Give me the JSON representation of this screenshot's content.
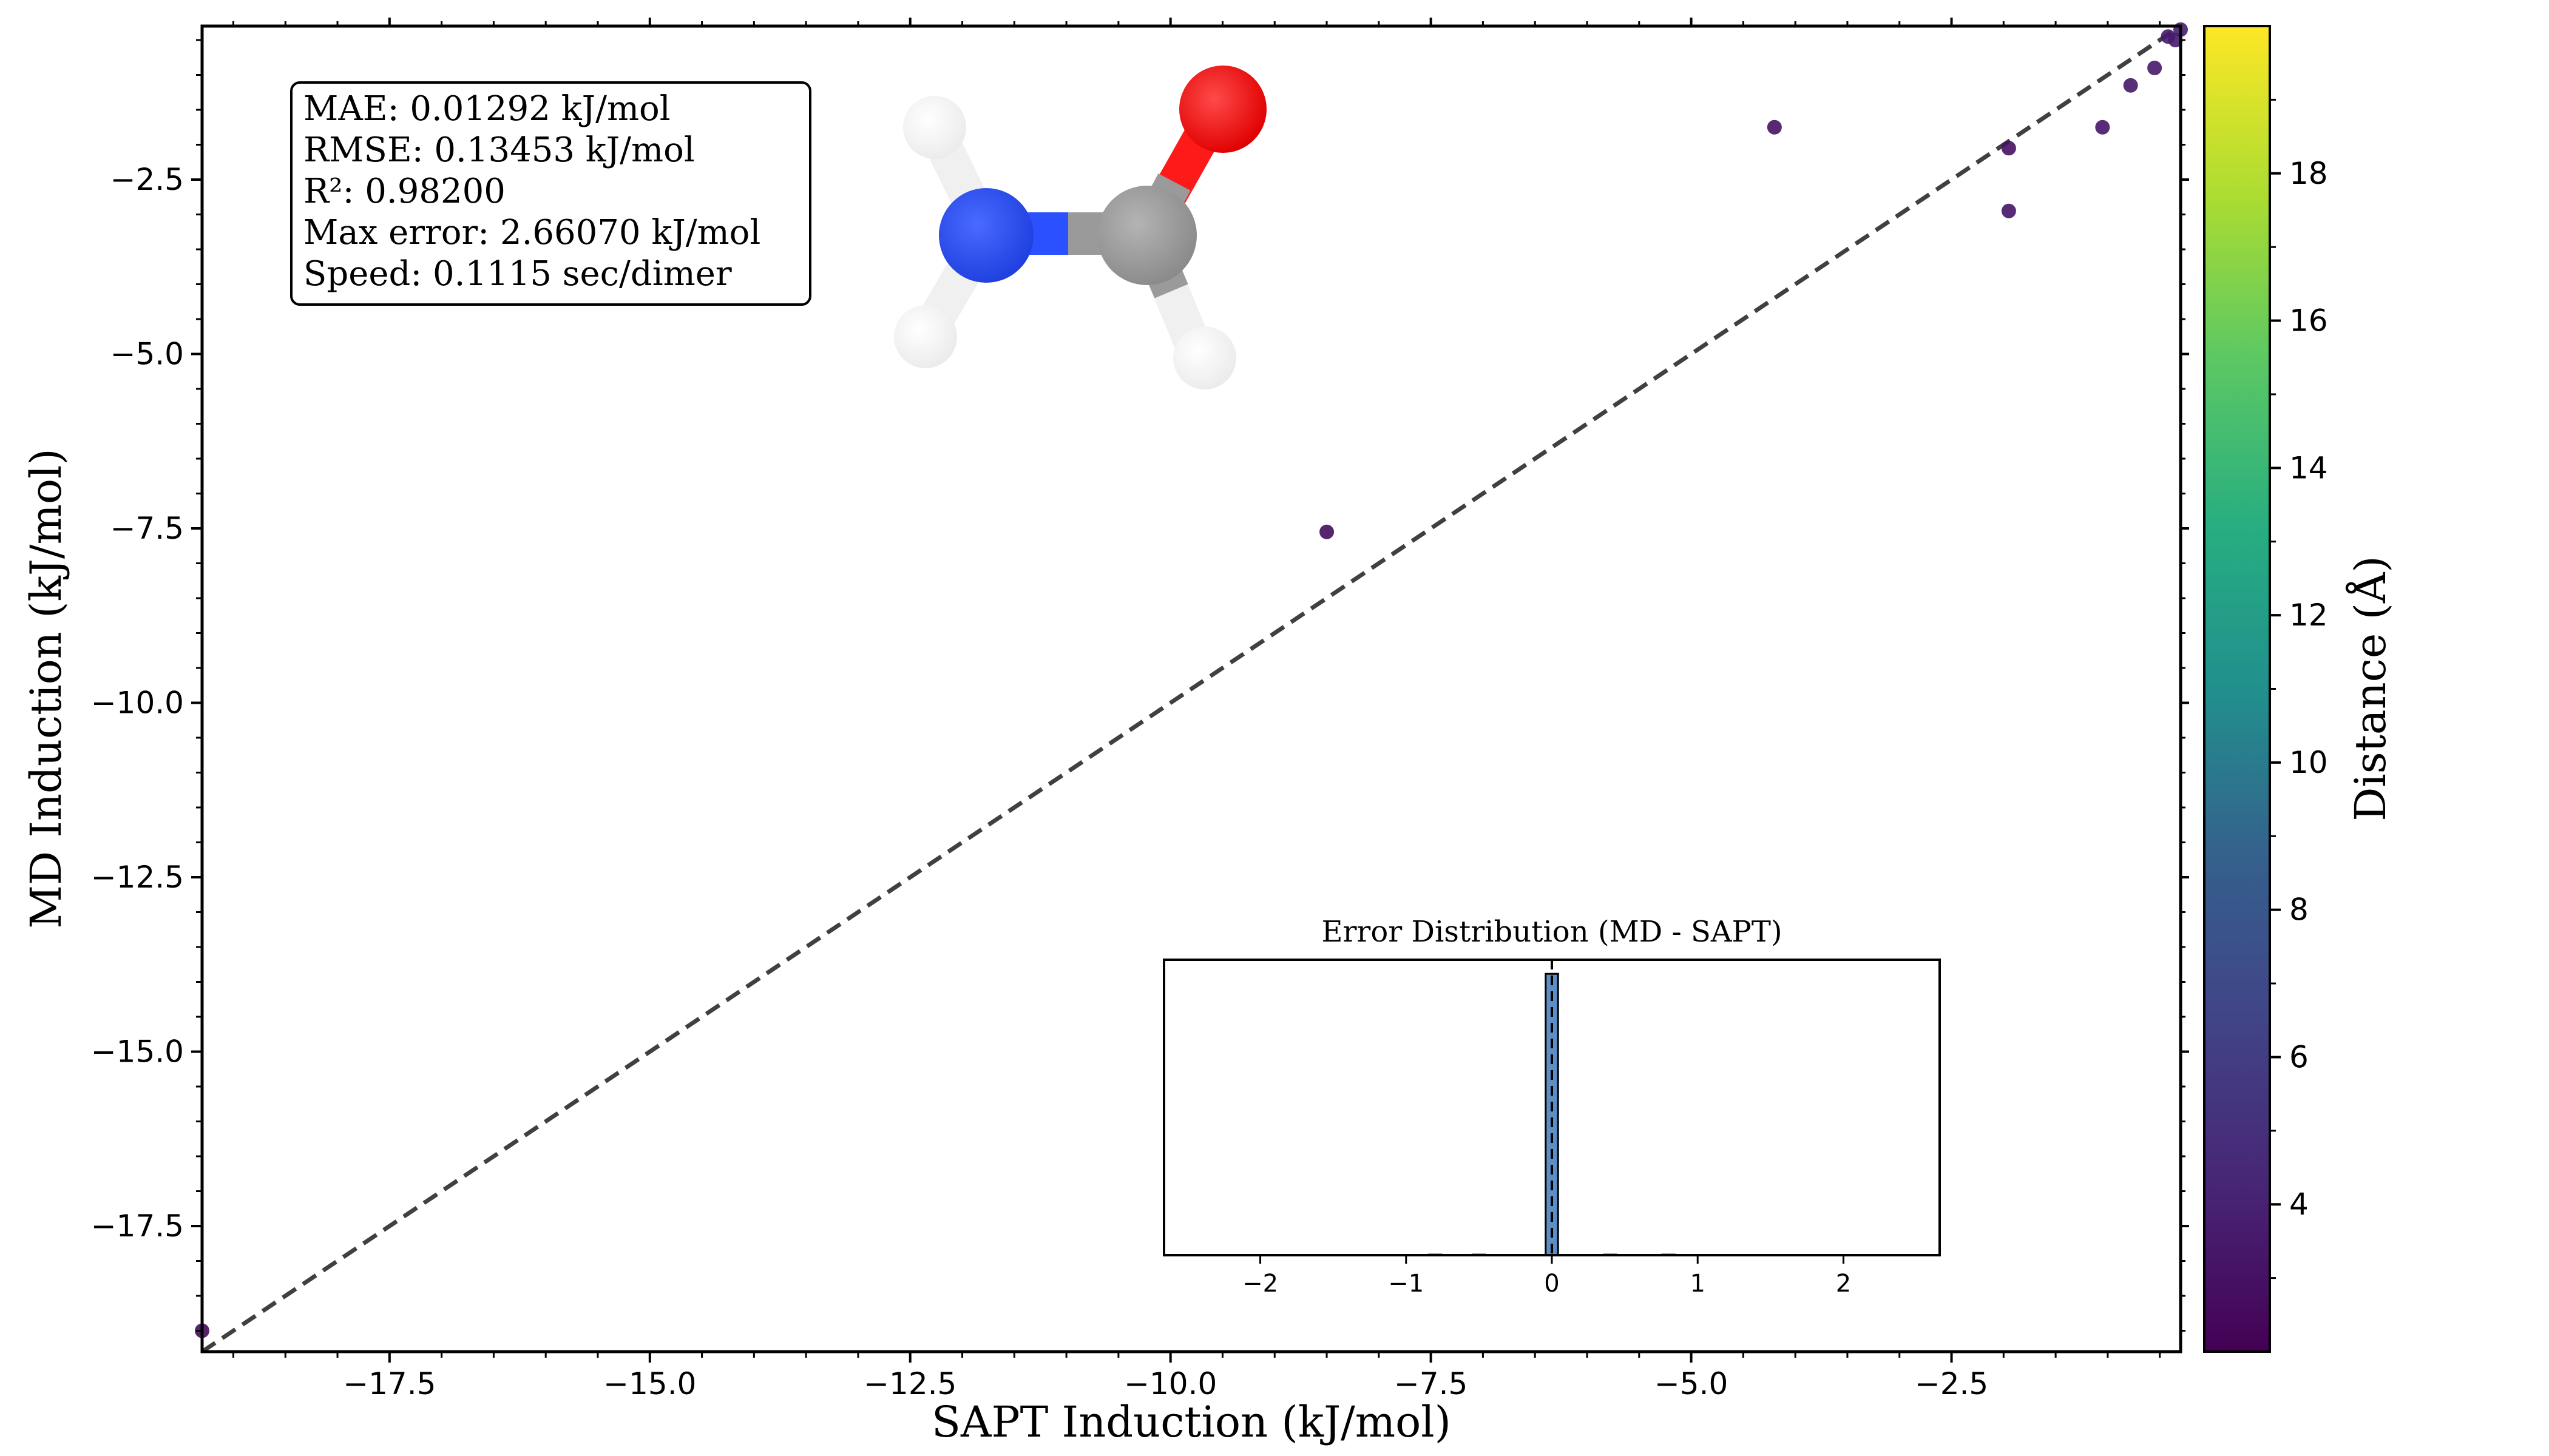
{
  "chart_data": [
    {
      "type": "scatter",
      "xlabel": "SAPT Induction (kJ/mol)",
      "ylabel": "MD Induction (kJ/mol)",
      "xlim": [
        -19.3,
        -0.3
      ],
      "ylim": [
        -19.3,
        -0.3
      ],
      "xticks": [
        -17.5,
        -15.0,
        -12.5,
        -10.0,
        -7.5,
        -5.0,
        -2.5
      ],
      "xtick_labels": [
        "−17.5",
        "−15.0",
        "−12.5",
        "−10.0",
        "−7.5",
        "−5.0",
        "−2.5"
      ],
      "yticks": [
        -17.5,
        -15.0,
        -12.5,
        -10.0,
        -7.5,
        -5.0,
        -2.5
      ],
      "ytick_labels": [
        "−17.5",
        "−15.0",
        "−12.5",
        "−10.0",
        "−7.5",
        "−5.0",
        "−2.5"
      ],
      "reference_line": "y = x",
      "points": [
        {
          "x": -19.3,
          "y": -19.0,
          "distance": 2.5
        },
        {
          "x": -8.5,
          "y": -7.55,
          "distance": 2.8
        },
        {
          "x": -4.2,
          "y": -1.75,
          "distance": 3.0
        },
        {
          "x": -1.95,
          "y": -2.05,
          "distance": 3.0
        },
        {
          "x": -1.95,
          "y": -2.95,
          "distance": 3.2
        },
        {
          "x": -1.05,
          "y": -1.75,
          "distance": 3.3
        },
        {
          "x": -0.78,
          "y": -1.15,
          "distance": 3.4
        },
        {
          "x": -0.55,
          "y": -0.9,
          "distance": 3.5
        },
        {
          "x": -0.42,
          "y": -0.45,
          "distance": 3.6
        },
        {
          "x": -0.35,
          "y": -0.5,
          "distance": 3.7
        },
        {
          "x": -0.3,
          "y": -0.35,
          "distance": 3.8
        }
      ],
      "grid": false
    },
    {
      "type": "bar",
      "title": "Error Distribution (MD - SAPT)",
      "xlim": [
        -2.66,
        2.66
      ],
      "xticks": [
        -2,
        -1,
        0,
        1,
        2
      ],
      "xtick_labels": [
        "−2",
        "−1",
        "0",
        "1",
        "2"
      ],
      "bins": [
        {
          "center": 0.0,
          "value": 1000
        },
        {
          "center": -0.8,
          "value": 2
        },
        {
          "center": -0.5,
          "value": 2
        },
        {
          "center": 0.4,
          "value": 2
        },
        {
          "center": 0.8,
          "value": 2
        }
      ],
      "ylim": [
        0,
        1050
      ],
      "reference_line_x": 0
    }
  ],
  "stats": {
    "mae": "MAE: 0.01292 kJ/mol",
    "rmse": "RMSE: 0.13453 kJ/mol",
    "r2": "R²: 0.98200",
    "max_error": "Max error: 2.66070 kJ/mol",
    "speed": "Speed: 0.1115 sec/dimer"
  },
  "colorbar": {
    "label": "Distance (Å)",
    "range": [
      2.0,
      20.0
    ],
    "ticks": [
      4,
      6,
      8,
      10,
      12,
      14,
      16,
      18
    ],
    "tick_labels": [
      "4",
      "6",
      "8",
      "10",
      "12",
      "14",
      "16",
      "18"
    ],
    "colormap": "viridis"
  },
  "colors": {
    "reference_line": "#404040",
    "hist_bar": "#5b8fc7",
    "oxygen": "#ff1a1a",
    "nitrogen": "#2b50ff",
    "carbon": "#9a9a9a",
    "hydrogen": "#f4f4f4"
  },
  "molecule": {
    "atoms": [
      "H",
      "H",
      "N",
      "C",
      "O",
      "H"
    ],
    "name_icon": "formamide-molecule-icon"
  }
}
